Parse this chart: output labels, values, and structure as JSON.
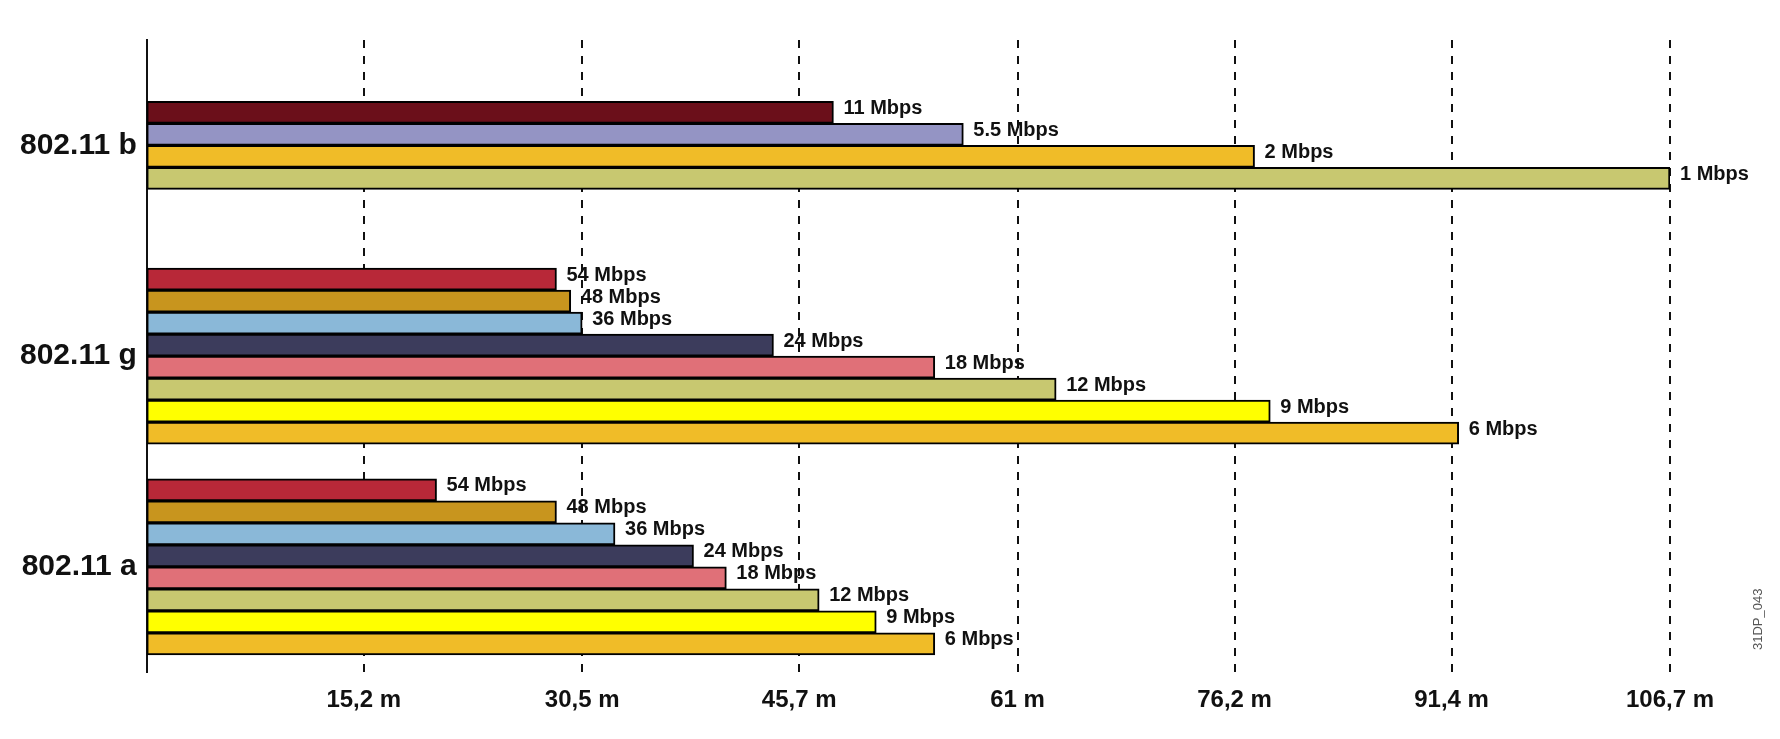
{
  "chart_data": {
    "type": "bar",
    "orientation": "horizontal",
    "categories": [
      "802.11 b",
      "802.11 g",
      "802.11 a"
    ],
    "series": [
      {
        "name": "11 Mbps",
        "color": "#6b0f1a",
        "values": [
          48.1,
          null,
          null
        ]
      },
      {
        "name": "5.5 Mbps",
        "color": "#9494c4",
        "values": [
          57.2,
          null,
          null
        ]
      },
      {
        "name": "2 Mbps",
        "color": "#f0bc28",
        "values": [
          77.6,
          null,
          null
        ]
      },
      {
        "name": "1 Mbps",
        "color": "#c8c870",
        "values": [
          106.7,
          null,
          null
        ]
      },
      {
        "name": "54 Mbps",
        "color": "#b82838",
        "values": [
          null,
          28.7,
          20.3
        ]
      },
      {
        "name": "48 Mbps",
        "color": "#c8951e",
        "values": [
          null,
          29.7,
          28.7
        ]
      },
      {
        "name": "36 Mbps",
        "color": "#8ab8d8",
        "values": [
          null,
          30.5,
          32.8
        ]
      },
      {
        "name": "24 Mbps",
        "color": "#3c3c5c",
        "values": [
          null,
          43.9,
          38.3
        ]
      },
      {
        "name": "18 Mbps",
        "color": "#e07078",
        "values": [
          null,
          55.2,
          40.6
        ]
      },
      {
        "name": "12 Mbps",
        "color": "#c8c870",
        "values": [
          null,
          63.7,
          47.1
        ]
      },
      {
        "name": "9 Mbps",
        "color": "#ffff00",
        "values": [
          null,
          78.7,
          51.1
        ]
      },
      {
        "name": "6 Mbps",
        "color": "#f0bc28",
        "values": [
          null,
          91.9,
          55.2
        ]
      }
    ],
    "xlim": [
      0,
      106.7
    ],
    "xticks": [
      {
        "value": 15.2,
        "label": "15,2 m"
      },
      {
        "value": 30.5,
        "label": "30,5 m"
      },
      {
        "value": 45.7,
        "label": "45,7 m"
      },
      {
        "value": 61,
        "label": "61 m"
      },
      {
        "value": 76.2,
        "label": "76,2 m"
      },
      {
        "value": 91.4,
        "label": "91,4 m"
      },
      {
        "value": 106.7,
        "label": "106,7 m"
      }
    ],
    "grid": "x",
    "line_style": "dashed",
    "legend": false,
    "annotations": [
      "31DP_043"
    ]
  }
}
